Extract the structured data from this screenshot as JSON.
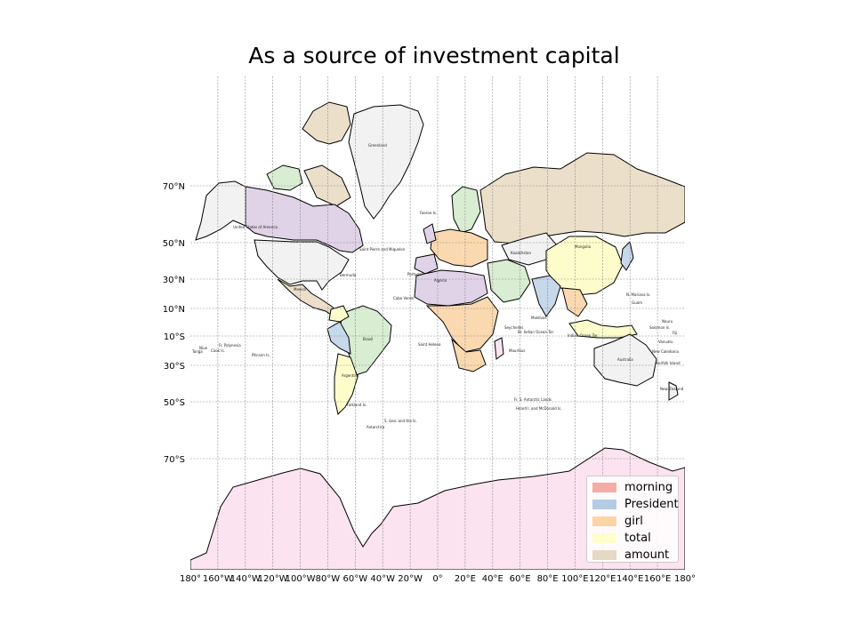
{
  "title": "As a source of investment capital",
  "legend": [
    {
      "label": "morning",
      "color": "#f4aca6"
    },
    {
      "label": "President",
      "color": "#b3cbe3"
    },
    {
      "label": "girl",
      "color": "#fbd5a5"
    },
    {
      "label": "total",
      "color": "#fefecc"
    },
    {
      "label": "amount",
      "color": "#e6d9c4"
    }
  ],
  "lat_ticks": [
    "70°N",
    "50°N",
    "30°N",
    "10°N",
    "10°S",
    "30°S",
    "50°S",
    "70°S"
  ],
  "lon_ticks": [
    "180°",
    "160°W",
    "140°W",
    "120°W",
    "100°W",
    "80°W",
    "60°W",
    "40°W",
    "20°W",
    "0°",
    "20°E",
    "40°E",
    "60°E",
    "80°E",
    "100°E",
    "120°E",
    "140°E",
    "160°E",
    "180°"
  ],
  "place_labels": [
    "Greenland",
    "United States of America",
    "Saint Pierre and Miquelon",
    "Bermuda",
    "Faeroe Is.",
    "Portugal",
    "Algeria",
    "Mexico",
    "Cabo Verde",
    "Brazil",
    "Argentina",
    "Falkland Is.",
    "S. Geo. and the Is.",
    "Antarctica",
    "Saint Helena",
    "Maldives",
    "Br. Indian Ocean Ter.",
    "Seychelles",
    "Mauritius",
    "Fr. S. Antarctic Lands",
    "Heard I. and McDonald Is.",
    "Kazakhstan",
    "Mongolia",
    "N. Mariana Is.",
    "Guam",
    "Australia",
    "Norfolk Island",
    "New Zealand",
    "New Caledonia",
    "Vanuatu",
    "Fiji",
    "Pitcairn Is.",
    "Fr. Polynesia",
    "Cook Is.",
    "Niue",
    "Tonga",
    "Indian Ocean Ter.",
    "Solomon Is.",
    "Nauru"
  ],
  "region_colors": {
    "lavender": "#e0d3e8",
    "pink": "#fbe3ef",
    "green": "#d8edd2",
    "grey": "#f2f2f2",
    "tan": "#ebdfca",
    "yellow": "#fdfdcc",
    "orange": "#fbd9b0",
    "blue": "#c6d8ea"
  }
}
